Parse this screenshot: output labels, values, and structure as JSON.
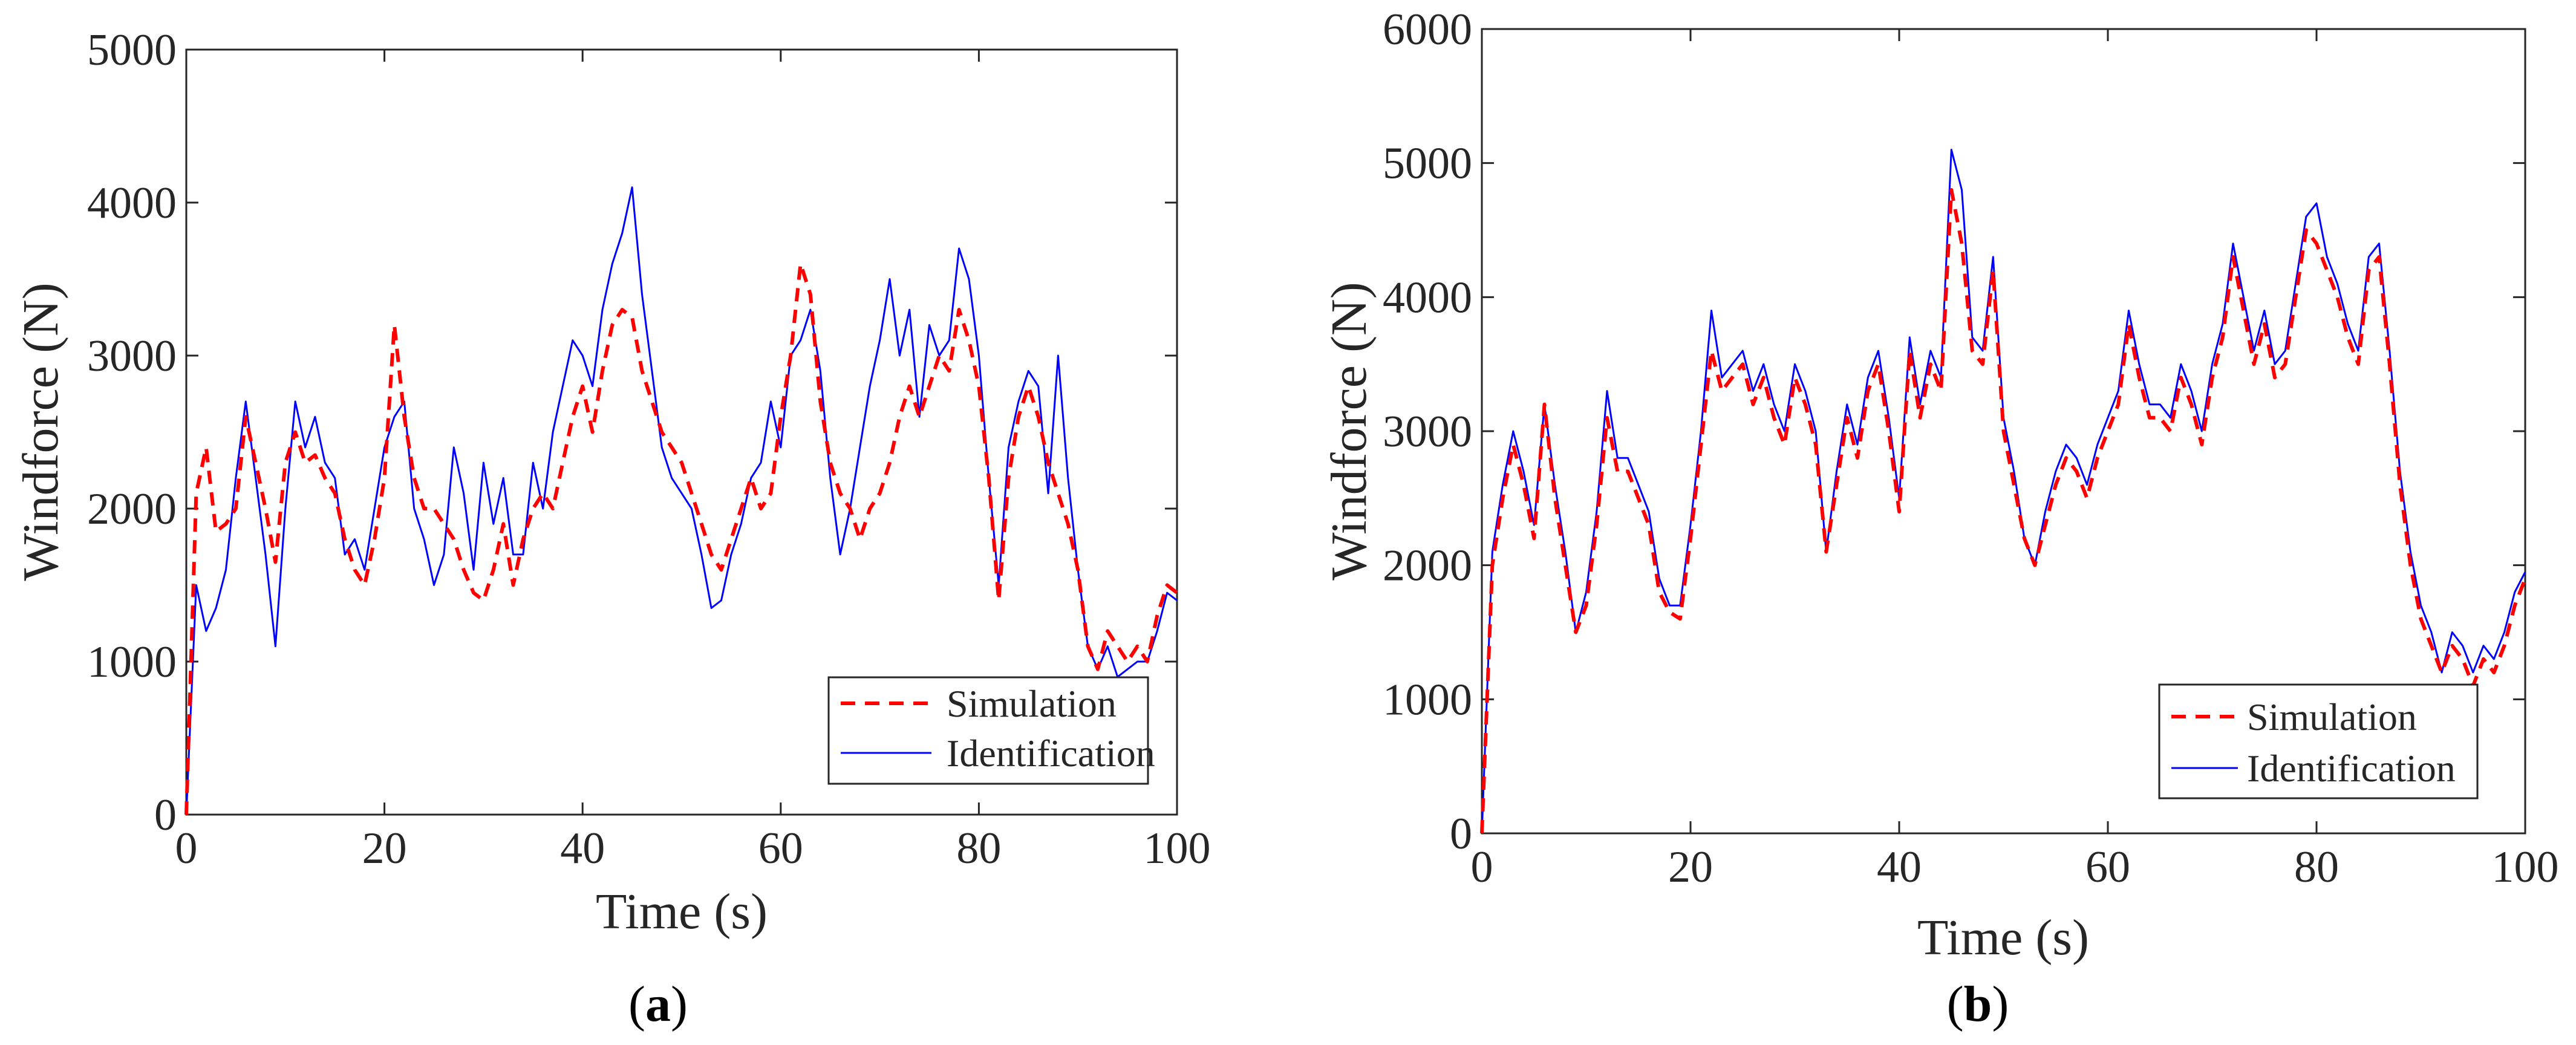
{
  "colors": {
    "simulation": "#ff0000",
    "identification": "#0000ff",
    "axis": "#262626"
  },
  "chart_data": [
    {
      "id": "a",
      "type": "line",
      "caption_open": "(",
      "caption_letter": "a",
      "caption_close": ")",
      "xlabel": "Time (s)",
      "ylabel": "Windforce (N)",
      "xlim": [
        0,
        100
      ],
      "ylim": [
        0,
        5000
      ],
      "xticks": [
        0,
        20,
        40,
        60,
        80,
        100
      ],
      "yticks": [
        0,
        1000,
        2000,
        3000,
        4000,
        5000
      ],
      "xtick_labels": [
        "0",
        "20",
        "40",
        "60",
        "80",
        "100"
      ],
      "ytick_labels": [
        "0",
        "1000",
        "2000",
        "3000",
        "4000",
        "5000"
      ],
      "legend": {
        "location": "bottom-right",
        "entries": [
          "Simulation",
          "Identification"
        ]
      },
      "x": [
        0,
        1,
        2,
        3,
        4,
        5,
        6,
        7,
        8,
        9,
        10,
        11,
        12,
        13,
        14,
        15,
        16,
        17,
        18,
        19,
        20,
        21,
        22,
        23,
        24,
        25,
        26,
        27,
        28,
        29,
        30,
        31,
        32,
        33,
        34,
        35,
        36,
        37,
        38,
        39,
        40,
        41,
        42,
        43,
        44,
        45,
        46,
        47,
        48,
        49,
        50,
        51,
        52,
        53,
        54,
        55,
        56,
        57,
        58,
        59,
        60,
        61,
        62,
        63,
        64,
        65,
        66,
        67,
        68,
        69,
        70,
        71,
        72,
        73,
        74,
        75,
        76,
        77,
        78,
        79,
        80,
        81,
        82,
        83,
        84,
        85,
        86,
        87,
        88,
        89,
        90,
        91,
        92,
        93,
        94,
        95,
        96,
        97,
        98,
        99,
        100
      ],
      "series": [
        {
          "name": "Simulation",
          "style": "dashed",
          "values": [
            0,
            2100,
            2400,
            1850,
            1900,
            2000,
            2600,
            2300,
            2000,
            1650,
            2300,
            2500,
            2300,
            2350,
            2200,
            2100,
            1800,
            1600,
            1500,
            1800,
            2200,
            3200,
            2600,
            2200,
            2000,
            2000,
            1900,
            1800,
            1600,
            1450,
            1400,
            1600,
            1900,
            1500,
            1800,
            2000,
            2100,
            2000,
            2300,
            2600,
            2800,
            2500,
            2900,
            3200,
            3300,
            3250,
            2900,
            2700,
            2500,
            2400,
            2300,
            2100,
            1900,
            1700,
            1600,
            1800,
            2000,
            2200,
            2000,
            2100,
            2600,
            3000,
            3600,
            3400,
            2700,
            2300,
            2100,
            2000,
            1800,
            2000,
            2100,
            2300,
            2600,
            2800,
            2600,
            2800,
            3000,
            2900,
            3300,
            3100,
            2800,
            2200,
            1400,
            2200,
            2600,
            2800,
            2600,
            2300,
            2100,
            1900,
            1600,
            1100,
            950,
            1200,
            1100,
            1000,
            1100,
            1000,
            1300,
            1500,
            1450
          ]
        },
        {
          "name": "Identification",
          "style": "solid",
          "values": [
            0,
            1500,
            1200,
            1350,
            1600,
            2200,
            2700,
            2200,
            1700,
            1100,
            2000,
            2700,
            2400,
            2600,
            2300,
            2200,
            1700,
            1800,
            1600,
            2000,
            2400,
            2600,
            2700,
            2000,
            1800,
            1500,
            1700,
            2400,
            2100,
            1600,
            2300,
            1900,
            2200,
            1700,
            1700,
            2300,
            2000,
            2500,
            2800,
            3100,
            3000,
            2800,
            3300,
            3600,
            3800,
            4100,
            3400,
            2900,
            2400,
            2200,
            2100,
            2000,
            1700,
            1350,
            1400,
            1700,
            1900,
            2200,
            2300,
            2700,
            2400,
            3000,
            3100,
            3300,
            2900,
            2200,
            1700,
            2000,
            2400,
            2800,
            3100,
            3500,
            3000,
            3300,
            2600,
            3200,
            3000,
            3100,
            3700,
            3500,
            3000,
            2200,
            1500,
            2400,
            2700,
            2900,
            2800,
            2100,
            3000,
            2200,
            1600,
            1100,
            950,
            1100,
            900,
            950,
            1000,
            1000,
            1200,
            1450,
            1400
          ]
        }
      ]
    },
    {
      "id": "b",
      "type": "line",
      "caption_open": "(",
      "caption_letter": "b",
      "caption_close": ")",
      "xlabel": "Time (s)",
      "ylabel": "Windforce (N)",
      "xlim": [
        0,
        100
      ],
      "ylim": [
        0,
        6000
      ],
      "xticks": [
        0,
        20,
        40,
        60,
        80,
        100
      ],
      "yticks": [
        0,
        1000,
        2000,
        3000,
        4000,
        5000,
        6000
      ],
      "xtick_labels": [
        "0",
        "20",
        "40",
        "60",
        "80",
        "100"
      ],
      "ytick_labels": [
        "0",
        "1000",
        "2000",
        "3000",
        "4000",
        "5000",
        "6000"
      ],
      "legend": {
        "location": "bottom-right",
        "entries": [
          "Simulation",
          "Identification"
        ]
      },
      "x": [
        0,
        1,
        2,
        3,
        4,
        5,
        6,
        7,
        8,
        9,
        10,
        11,
        12,
        13,
        14,
        15,
        16,
        17,
        18,
        19,
        20,
        21,
        22,
        23,
        24,
        25,
        26,
        27,
        28,
        29,
        30,
        31,
        32,
        33,
        34,
        35,
        36,
        37,
        38,
        39,
        40,
        41,
        42,
        43,
        44,
        45,
        46,
        47,
        48,
        49,
        50,
        51,
        52,
        53,
        54,
        55,
        56,
        57,
        58,
        59,
        60,
        61,
        62,
        63,
        64,
        65,
        66,
        67,
        68,
        69,
        70,
        71,
        72,
        73,
        74,
        75,
        76,
        77,
        78,
        79,
        80,
        81,
        82,
        83,
        84,
        85,
        86,
        87,
        88,
        89,
        90,
        91,
        92,
        93,
        94,
        95,
        96,
        97,
        98,
        99,
        100
      ],
      "series": [
        {
          "name": "Simulation",
          "style": "dashed",
          "values": [
            0,
            2000,
            2500,
            2900,
            2600,
            2200,
            3200,
            2500,
            2000,
            1500,
            1700,
            2300,
            3100,
            2700,
            2700,
            2500,
            2300,
            1800,
            1650,
            1600,
            2200,
            2900,
            3600,
            3300,
            3400,
            3500,
            3200,
            3400,
            3100,
            2900,
            3400,
            3200,
            2900,
            2100,
            2600,
            3100,
            2800,
            3300,
            3500,
            3000,
            2400,
            3600,
            3100,
            3500,
            3300,
            4800,
            4400,
            3600,
            3500,
            4200,
            3000,
            2600,
            2200,
            2000,
            2300,
            2600,
            2800,
            2700,
            2500,
            2800,
            3000,
            3200,
            3800,
            3400,
            3100,
            3100,
            3000,
            3400,
            3200,
            2900,
            3400,
            3700,
            4300,
            3900,
            3500,
            3800,
            3400,
            3500,
            4000,
            4500,
            4400,
            4200,
            4000,
            3700,
            3500,
            4200,
            4300,
            3500,
            2600,
            2000,
            1600,
            1400,
            1200,
            1400,
            1300,
            1100,
            1300,
            1200,
            1400,
            1700,
            1900
          ]
        },
        {
          "name": "Identification",
          "style": "solid",
          "values": [
            0,
            2100,
            2600,
            3000,
            2700,
            2300,
            3200,
            2600,
            2100,
            1500,
            1800,
            2400,
            3300,
            2800,
            2800,
            2600,
            2400,
            1900,
            1700,
            1700,
            2300,
            3000,
            3900,
            3400,
            3500,
            3600,
            3300,
            3500,
            3200,
            3000,
            3500,
            3300,
            3000,
            2100,
            2700,
            3200,
            2900,
            3400,
            3600,
            3100,
            2500,
            3700,
            3200,
            3600,
            3400,
            5100,
            4800,
            3700,
            3600,
            4300,
            3100,
            2700,
            2200,
            2000,
            2400,
            2700,
            2900,
            2800,
            2600,
            2900,
            3100,
            3300,
            3900,
            3500,
            3200,
            3200,
            3100,
            3500,
            3300,
            3000,
            3500,
            3800,
            4400,
            4000,
            3600,
            3900,
            3500,
            3600,
            4100,
            4600,
            4700,
            4300,
            4100,
            3800,
            3600,
            4300,
            4400,
            3600,
            2700,
            2100,
            1700,
            1500,
            1200,
            1500,
            1400,
            1200,
            1400,
            1300,
            1500,
            1800,
            1950
          ]
        }
      ]
    }
  ]
}
